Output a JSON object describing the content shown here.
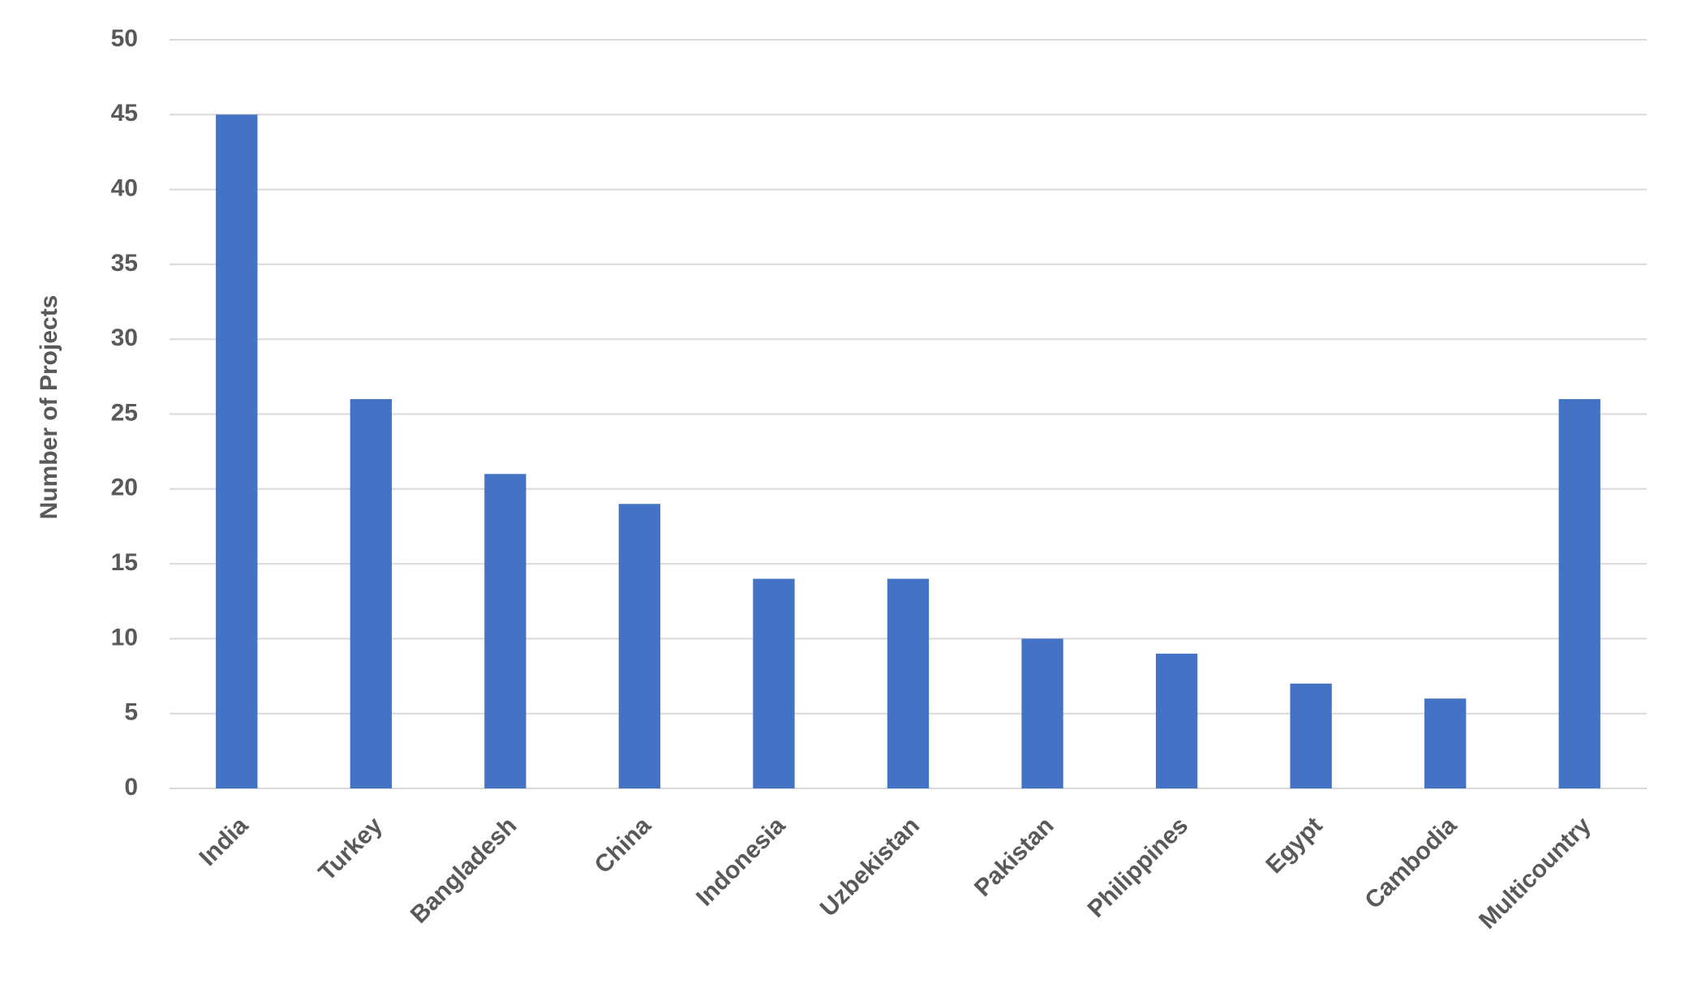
{
  "chart_data": {
    "type": "bar",
    "y_label": "Number of Projects",
    "categories": [
      "India",
      "Turkey",
      "Bangladesh",
      "China",
      "Indonesia",
      "Uzbekistan",
      "Pakistan",
      "Philippines",
      "Egypt",
      "Cambodia",
      "Multicountry"
    ],
    "values": [
      45,
      26,
      21,
      19,
      14,
      14,
      10,
      9,
      7,
      6,
      26
    ],
    "color": "#4472c4",
    "ylim": [
      0,
      50
    ],
    "yticks": [
      0,
      5,
      10,
      15,
      20,
      25,
      30,
      35,
      40,
      45,
      50
    ],
    "grid": true
  }
}
